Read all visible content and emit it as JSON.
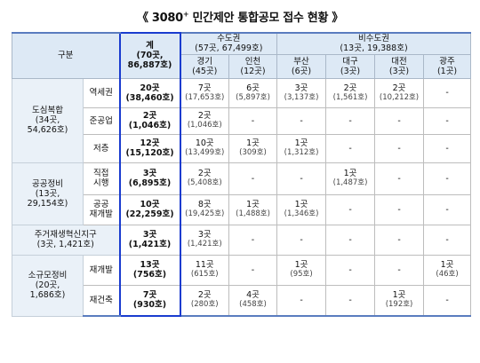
{
  "title": {
    "text": "《 3080",
    "sup": "+",
    "rest": " 민간제안 통합공모 접수 현황 》"
  },
  "header": {
    "category": "구분",
    "total": {
      "l1": "계",
      "l2": "(70곳,",
      "l3": "86,887호)"
    },
    "metro": {
      "l1": "수도권",
      "l2": "(57곳, 67,499호)"
    },
    "nonmetro": {
      "l1": "비수도권",
      "l2": "(13곳, 19,388호)"
    },
    "regions": [
      {
        "name": "경기",
        "count": "(45곳)"
      },
      {
        "name": "인천",
        "count": "(12곳)"
      },
      {
        "name": "부산",
        "count": "(6곳)"
      },
      {
        "name": "대구",
        "count": "(3곳)"
      },
      {
        "name": "대전",
        "count": "(3곳)"
      },
      {
        "name": "광주",
        "count": "(1곳)"
      }
    ]
  },
  "groups": {
    "dosim": {
      "l1": "도심복합",
      "l2": "(34곳,",
      "l3": "54,626호)"
    },
    "gong": {
      "l1": "공공정비",
      "l2": "(13곳,",
      "l3": "29,154호)"
    },
    "jugeo": {
      "l1": "주거재생혁신지구",
      "l2": "(3곳, 1,421호)"
    },
    "sogyu": {
      "l1": "소규모정비",
      "l2": "(20곳,",
      "l3": "1,686호)"
    }
  },
  "rows": [
    {
      "sub1": "역세권",
      "sub2": "",
      "total": [
        "20곳",
        "(38,460호)"
      ],
      "cells": [
        [
          "7곳",
          "(17,653호)"
        ],
        [
          "6곳",
          "(5,897호)"
        ],
        [
          "3곳",
          "(3,137호)"
        ],
        [
          "2곳",
          "(1,561호)"
        ],
        [
          "2곳",
          "(10,212호)"
        ],
        [
          "-",
          ""
        ]
      ]
    },
    {
      "sub1": "준공업",
      "sub2": "",
      "total": [
        "2곳",
        "(1,046호)"
      ],
      "cells": [
        [
          "2곳",
          "(1,046호)"
        ],
        [
          "-",
          ""
        ],
        [
          "-",
          ""
        ],
        [
          "-",
          ""
        ],
        [
          "-",
          ""
        ],
        [
          "-",
          ""
        ]
      ]
    },
    {
      "sub1": "저층",
      "sub2": "",
      "total": [
        "12곳",
        "(15,120호)"
      ],
      "cells": [
        [
          "10곳",
          "(13,499호)"
        ],
        [
          "1곳",
          "(309호)"
        ],
        [
          "1곳",
          "(1,312호)"
        ],
        [
          "-",
          ""
        ],
        [
          "-",
          ""
        ],
        [
          "-",
          ""
        ]
      ]
    },
    {
      "sub1": "직접",
      "sub2": "시행",
      "total": [
        "3곳",
        "(6,895호)"
      ],
      "cells": [
        [
          "2곳",
          "(5,408호)"
        ],
        [
          "-",
          ""
        ],
        [
          "-",
          ""
        ],
        [
          "1곳",
          "(1,487호)"
        ],
        [
          "-",
          ""
        ],
        [
          "-",
          ""
        ]
      ]
    },
    {
      "sub1": "공공",
      "sub2": "재개발",
      "total": [
        "10곳",
        "(22,259호)"
      ],
      "cells": [
        [
          "8곳",
          "(19,425호)"
        ],
        [
          "1곳",
          "(1,488호)"
        ],
        [
          "1곳",
          "(1,346호)"
        ],
        [
          "-",
          ""
        ],
        [
          "-",
          ""
        ],
        [
          "-",
          ""
        ]
      ]
    },
    {
      "sub1": "",
      "sub2": "",
      "total": [
        "3곳",
        "(1,421호)"
      ],
      "cells": [
        [
          "3곳",
          "(1,421호)"
        ],
        [
          "-",
          ""
        ],
        [
          "-",
          ""
        ],
        [
          "-",
          ""
        ],
        [
          "-",
          ""
        ],
        [
          "-",
          ""
        ]
      ]
    },
    {
      "sub1": "재개발",
      "sub2": "",
      "total": [
        "13곳",
        "(756호)"
      ],
      "cells": [
        [
          "11곳",
          "(615호)"
        ],
        [
          "-",
          ""
        ],
        [
          "1곳",
          "(95호)"
        ],
        [
          "-",
          ""
        ],
        [
          "-",
          ""
        ],
        [
          "1곳",
          "(46호)"
        ]
      ]
    },
    {
      "sub1": "재건축",
      "sub2": "",
      "total": [
        "7곳",
        "(930호)"
      ],
      "cells": [
        [
          "2곳",
          "(280호)"
        ],
        [
          "4곳",
          "(458호)"
        ],
        [
          "-",
          ""
        ],
        [
          "-",
          ""
        ],
        [
          "1곳",
          "(192호)"
        ],
        [
          "-",
          ""
        ]
      ]
    }
  ]
}
